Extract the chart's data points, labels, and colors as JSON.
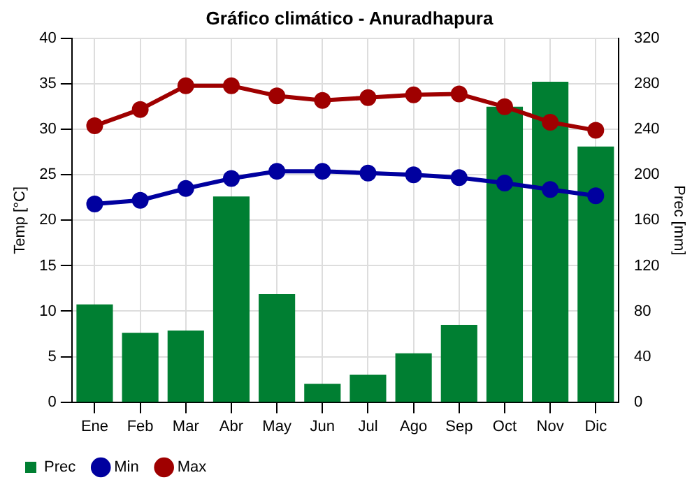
{
  "chart_data": {
    "type": "bar",
    "title": "Gráfico climático - Anuradhapura",
    "ylabel": "Temp [°C]",
    "y2label": "Prec [mm]",
    "categories": [
      "Ene",
      "Feb",
      "Mar",
      "Abr",
      "May",
      "Jun",
      "Jul",
      "Ago",
      "Sep",
      "Oct",
      "Nov",
      "Dic"
    ],
    "series": [
      {
        "name": "Prec",
        "axis": "y2",
        "color": "#007f32",
        "values": [
          86,
          61,
          63,
          181,
          95,
          16,
          24,
          43,
          68,
          260,
          282,
          225
        ]
      },
      {
        "name": "Min",
        "type": "line",
        "color": "#00009f",
        "values": [
          21.8,
          22.2,
          23.5,
          24.6,
          25.4,
          25.4,
          25.2,
          25.0,
          24.7,
          24.1,
          23.4,
          22.7
        ]
      },
      {
        "name": "Max",
        "type": "line",
        "color": "#9f0000",
        "values": [
          30.4,
          32.2,
          34.8,
          34.8,
          33.7,
          33.2,
          33.5,
          33.8,
          33.9,
          32.5,
          30.8,
          29.9
        ]
      }
    ],
    "ylim": [
      0,
      40
    ],
    "yticks": [
      0,
      5,
      10,
      15,
      20,
      25,
      30,
      35,
      40
    ],
    "y2lim": [
      0,
      320
    ],
    "y2ticks": [
      0,
      40,
      80,
      120,
      160,
      200,
      240,
      280,
      320
    ],
    "grid": true,
    "legend": "bottom left",
    "marker": "circle",
    "line_style": "solid"
  }
}
